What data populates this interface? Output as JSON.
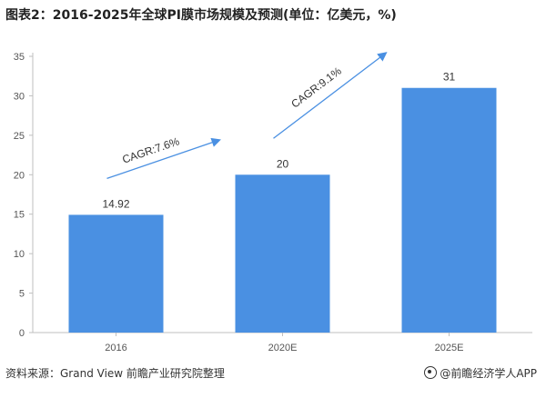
{
  "chart_data": {
    "type": "bar",
    "title": "图表2：2016-2025年全球PI膜市场规模及预测(单位：亿美元，%)",
    "categories": [
      "2016",
      "2020E",
      "2025E"
    ],
    "values": [
      14.92,
      20,
      31
    ],
    "value_labels": [
      "14.92",
      "20",
      "31"
    ],
    "ylim": [
      0,
      35
    ],
    "yticks": [
      0,
      5,
      10,
      15,
      20,
      25,
      30,
      35
    ],
    "grid": false,
    "legend": "none",
    "bar_color": "#4a90e2",
    "arrow_color": "#4a90e2",
    "annotations": [
      {
        "text": "CAGR:7.6%",
        "from_category": 0,
        "to_category": 1
      },
      {
        "text": "CAGR:9.1%",
        "from_category": 1,
        "to_category": 2
      }
    ]
  },
  "footer": {
    "source": "资料来源：Grand View 前瞻产业研究院整理",
    "brand": "@前瞻经济学人APP"
  }
}
